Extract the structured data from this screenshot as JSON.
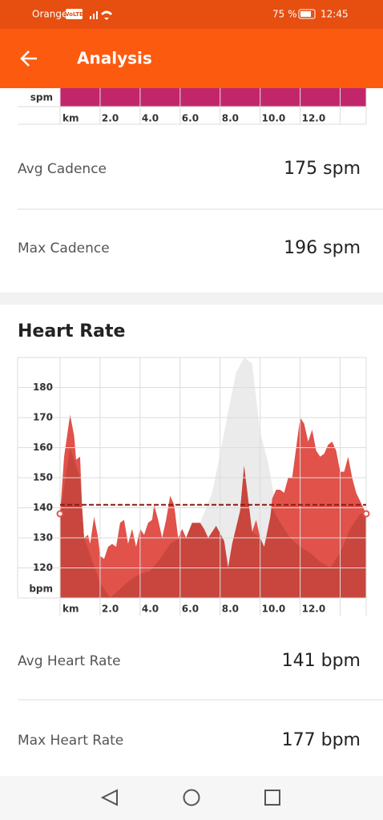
{
  "status_bar": {
    "carrier": "Orange",
    "badge": "VoLTE",
    "battery": "75 %",
    "time": "12:45"
  },
  "header": {
    "title": "Analysis"
  },
  "cadence_chart": {
    "ylabel": "spm",
    "xlabel": "km",
    "xlim": [
      0,
      15.3
    ],
    "xticks": [
      {
        "value": 2,
        "label": "2.0"
      },
      {
        "value": 4,
        "label": "4.0"
      },
      {
        "value": 6,
        "label": "6.0"
      },
      {
        "value": 8,
        "label": "8.0"
      },
      {
        "value": 10,
        "label": "10.0"
      },
      {
        "value": 12,
        "label": "12.0"
      }
    ],
    "xgrid": [
      0,
      2,
      4,
      6,
      8,
      10,
      12,
      14
    ],
    "color": "#c2266a"
  },
  "cadence_stats": [
    {
      "label": "Avg Cadence",
      "value": "175 spm"
    },
    {
      "label": "Max Cadence",
      "value": "196 spm"
    }
  ],
  "chart_data": {
    "type": "area",
    "title": "Heart Rate",
    "ylabel": "bpm",
    "xlabel": "km",
    "xlim": [
      0,
      15.3
    ],
    "ylim": [
      110,
      190
    ],
    "yticks": [
      120,
      130,
      140,
      150,
      160,
      170,
      180
    ],
    "xticks": [
      {
        "value": 2,
        "label": "2.0"
      },
      {
        "value": 4,
        "label": "4.0"
      },
      {
        "value": 6,
        "label": "6.0"
      },
      {
        "value": 8,
        "label": "8.0"
      },
      {
        "value": 10,
        "label": "10.0"
      },
      {
        "value": 12,
        "label": "12.0"
      }
    ],
    "xgrid": [
      0,
      2,
      4,
      6,
      8,
      10,
      12,
      14
    ],
    "grid": true,
    "average": 141,
    "average_color": "#8b1a10",
    "series": [
      {
        "color": "#ebebeb",
        "x": [
          0,
          1,
          2,
          3,
          4,
          5,
          6,
          6.5,
          7.0,
          7.6,
          8.0,
          8.4,
          8.8,
          9.2,
          9.6,
          10.0,
          10.4,
          10.8,
          11.2,
          11.6,
          12,
          13,
          14,
          15.3
        ],
        "values": [
          135,
          130,
          120,
          122,
          124,
          126,
          128,
          130,
          135,
          145,
          158,
          172,
          185,
          190,
          188,
          165,
          155,
          140,
          130,
          125,
          123,
          122,
          128,
          136
        ]
      },
      {
        "color": "#e0524a",
        "x": [
          0,
          0.2,
          0.5,
          0.7,
          0.8,
          1.0,
          1.1,
          1.2,
          1.4,
          1.5,
          1.7,
          1.9,
          2.0,
          2.2,
          2.4,
          2.6,
          2.8,
          3.0,
          3.2,
          3.4,
          3.6,
          3.8,
          4.0,
          4.2,
          4.4,
          4.6,
          4.7,
          4.9,
          5.1,
          5.3,
          5.5,
          5.7,
          5.9,
          6.1,
          6.3,
          6.6,
          6.8,
          7.0,
          7.2,
          7.4,
          7.6,
          7.8,
          8.0,
          8.2,
          8.4,
          8.6,
          8.8,
          9.0,
          9.2,
          9.4,
          9.6,
          9.8,
          10.0,
          10.2,
          10.4,
          10.6,
          10.8,
          11.0,
          11.2,
          11.4,
          11.6,
          11.8,
          12.0,
          12.2,
          12.4,
          12.6,
          12.8,
          13.0,
          13.2,
          13.4,
          13.6,
          13.8,
          14.0,
          14.2,
          14.4,
          14.6,
          14.8,
          15.3
        ],
        "values": [
          138,
          157,
          171,
          164,
          156,
          157,
          140,
          130,
          131,
          128,
          137,
          130,
          124,
          123,
          127,
          128,
          127,
          135,
          136,
          128,
          133,
          127,
          133,
          131,
          135,
          136,
          141,
          136,
          130,
          136,
          144,
          141,
          130,
          133,
          130,
          135,
          134,
          135,
          133,
          130,
          128,
          134,
          127,
          129,
          120,
          128,
          133,
          139,
          154,
          140,
          132,
          136,
          130,
          127,
          130,
          143,
          146,
          146,
          145,
          150,
          150,
          160,
          170,
          168,
          162,
          166,
          159,
          157,
          158,
          161,
          162,
          159,
          152,
          152,
          157,
          150,
          145,
          138
        ]
      },
      {
        "color": "#c8463d",
        "x": [
          0,
          0.5,
          1.0,
          1.2,
          2.0,
          2.5,
          3.0,
          3.5,
          4.0,
          4.5,
          5.0,
          5.5,
          6.0,
          6.3,
          6.6,
          7.0,
          7.4,
          7.8,
          8.2,
          8.4,
          8.6,
          9.0,
          9.2,
          9.6,
          10.0,
          10.2,
          10.6,
          11.0,
          11.5,
          12.0,
          12.5,
          13.0,
          13.5,
          14.0,
          14.5,
          15.0,
          15.3
        ],
        "values": [
          138,
          160,
          150,
          130,
          115,
          110,
          113,
          116,
          118,
          119,
          123,
          128,
          130,
          130,
          135,
          135,
          130,
          134,
          129,
          120,
          128,
          139,
          154,
          132,
          130,
          127,
          140,
          135,
          130,
          127,
          125,
          122,
          120,
          125,
          133,
          138,
          138
        ]
      }
    ]
  },
  "heart_stats": [
    {
      "label": "Avg Heart Rate",
      "value": "141 bpm"
    },
    {
      "label": "Max Heart Rate",
      "value": "177 bpm"
    }
  ]
}
